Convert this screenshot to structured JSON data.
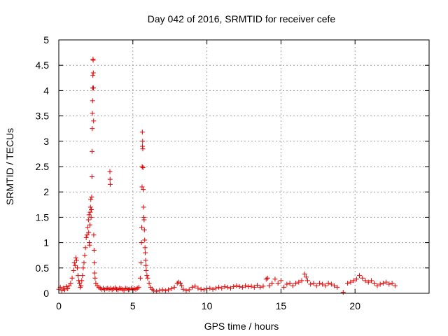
{
  "chart_data": {
    "type": "scatter",
    "title": "Day 042 of 2016, SRMTID for receiver cefe",
    "xlabel": "GPS time / hours",
    "ylabel": "SRMTID / TECUs",
    "xlim": [
      0,
      25
    ],
    "ylim": [
      0,
      5
    ],
    "x_ticks": [
      0,
      5,
      10,
      15,
      20
    ],
    "y_ticks": [
      0,
      0.5,
      1,
      1.5,
      2,
      2.5,
      3,
      3.5,
      4,
      4.5,
      5
    ],
    "x_tick_labels": [
      "0",
      "5",
      "10",
      "15",
      "20"
    ],
    "y_tick_labels": [
      "0",
      "0.5",
      "1",
      "1.5",
      "2",
      "2.5",
      "3",
      "3.5",
      "4",
      "4.5",
      "5"
    ],
    "grid": true,
    "marker": "+",
    "color": "#e00000",
    "series": [
      {
        "name": "SRMTID",
        "points": [
          [
            0.0,
            0.08
          ],
          [
            0.1,
            0.12
          ],
          [
            0.2,
            0.05
          ],
          [
            0.3,
            0.1
          ],
          [
            0.4,
            0.07
          ],
          [
            0.5,
            0.13
          ],
          [
            0.6,
            0.09
          ],
          [
            0.7,
            0.15
          ],
          [
            0.8,
            0.2
          ],
          [
            0.9,
            0.3
          ],
          [
            1.0,
            0.45
          ],
          [
            1.05,
            0.6
          ],
          [
            1.1,
            0.55
          ],
          [
            1.15,
            0.7
          ],
          [
            1.2,
            0.65
          ],
          [
            1.25,
            0.5
          ],
          [
            1.3,
            0.35
          ],
          [
            1.35,
            0.25
          ],
          [
            1.4,
            0.2
          ],
          [
            1.45,
            0.12
          ],
          [
            1.5,
            0.15
          ],
          [
            1.55,
            0.25
          ],
          [
            1.6,
            0.35
          ],
          [
            1.65,
            0.5
          ],
          [
            1.7,
            0.6
          ],
          [
            1.75,
            0.75
          ],
          [
            1.8,
            0.9
          ],
          [
            1.85,
            1.1
          ],
          [
            1.9,
            1.15
          ],
          [
            1.95,
            1.3
          ],
          [
            2.0,
            1.45
          ],
          [
            2.02,
            1.2
          ],
          [
            2.04,
            1.55
          ],
          [
            2.06,
            1.0
          ],
          [
            2.08,
            0.95
          ],
          [
            2.1,
            1.35
          ],
          [
            2.12,
            1.6
          ],
          [
            2.14,
            1.7
          ],
          [
            2.16,
            1.85
          ],
          [
            2.18,
            1.5
          ],
          [
            2.2,
            1.65
          ],
          [
            2.22,
            1.9
          ],
          [
            2.24,
            2.3
          ],
          [
            2.25,
            2.8
          ],
          [
            2.26,
            3.25
          ],
          [
            2.27,
            3.55
          ],
          [
            2.28,
            3.8
          ],
          [
            2.29,
            4.05
          ],
          [
            2.3,
            4.3
          ],
          [
            2.31,
            4.62
          ],
          [
            2.32,
            4.6
          ],
          [
            2.33,
            4.35
          ],
          [
            2.34,
            4.05
          ],
          [
            2.35,
            3.4
          ],
          [
            2.36,
            1.15
          ],
          [
            2.38,
            0.85
          ],
          [
            2.4,
            0.6
          ],
          [
            2.42,
            0.4
          ],
          [
            2.45,
            0.3
          ],
          [
            2.5,
            0.2
          ],
          [
            2.6,
            0.15
          ],
          [
            2.7,
            0.12
          ],
          [
            2.8,
            0.1
          ],
          [
            2.9,
            0.08
          ],
          [
            3.0,
            0.1
          ],
          [
            3.1,
            0.07
          ],
          [
            3.2,
            0.09
          ],
          [
            3.3,
            0.1
          ],
          [
            3.4,
            0.08
          ],
          [
            3.45,
            2.4
          ],
          [
            3.46,
            2.25
          ],
          [
            3.47,
            2.15
          ],
          [
            3.5,
            0.1
          ],
          [
            3.6,
            0.07
          ],
          [
            3.7,
            0.09
          ],
          [
            3.8,
            0.11
          ],
          [
            3.9,
            0.08
          ],
          [
            4.0,
            0.07
          ],
          [
            4.1,
            0.1
          ],
          [
            4.2,
            0.09
          ],
          [
            4.3,
            0.08
          ],
          [
            4.4,
            0.06
          ],
          [
            4.5,
            0.1
          ],
          [
            4.6,
            0.09
          ],
          [
            4.7,
            0.07
          ],
          [
            4.8,
            0.08
          ],
          [
            4.9,
            0.1
          ],
          [
            5.0,
            0.07
          ],
          [
            5.1,
            0.09
          ],
          [
            5.2,
            0.08
          ],
          [
            5.3,
            0.1
          ],
          [
            5.4,
            0.12
          ],
          [
            5.5,
            0.3
          ],
          [
            5.55,
            0.6
          ],
          [
            5.58,
            1.0
          ],
          [
            5.6,
            1.3
          ],
          [
            5.62,
            2.1
          ],
          [
            5.63,
            2.5
          ],
          [
            5.64,
            3.18
          ],
          [
            5.65,
            2.9
          ],
          [
            5.66,
            3.0
          ],
          [
            5.67,
            2.85
          ],
          [
            5.68,
            2.48
          ],
          [
            5.7,
            2.05
          ],
          [
            5.72,
            1.7
          ],
          [
            5.74,
            1.5
          ],
          [
            5.76,
            1.45
          ],
          [
            5.78,
            1.25
          ],
          [
            5.8,
            1.05
          ],
          [
            5.82,
            0.9
          ],
          [
            5.84,
            0.8
          ],
          [
            5.86,
            0.65
          ],
          [
            5.88,
            0.55
          ],
          [
            5.9,
            0.45
          ],
          [
            5.95,
            0.35
          ],
          [
            6.0,
            0.3
          ],
          [
            6.1,
            0.2
          ],
          [
            6.2,
            0.12
          ],
          [
            6.3,
            0.08
          ],
          [
            6.4,
            0.05
          ],
          [
            6.6,
            0.04
          ],
          [
            6.8,
            0.06
          ],
          [
            7.0,
            0.07
          ],
          [
            7.2,
            0.05
          ],
          [
            7.4,
            0.07
          ],
          [
            7.6,
            0.09
          ],
          [
            7.8,
            0.12
          ],
          [
            8.0,
            0.2
          ],
          [
            8.1,
            0.22
          ],
          [
            8.2,
            0.2
          ],
          [
            8.3,
            0.15
          ],
          [
            8.4,
            0.08
          ],
          [
            8.6,
            0.05
          ],
          [
            8.8,
            0.07
          ],
          [
            9.0,
            0.12
          ],
          [
            9.2,
            0.14
          ],
          [
            9.4,
            0.1
          ],
          [
            9.6,
            0.08
          ],
          [
            9.8,
            0.07
          ],
          [
            10.0,
            0.09
          ],
          [
            10.2,
            0.1
          ],
          [
            10.4,
            0.08
          ],
          [
            10.6,
            0.1
          ],
          [
            10.8,
            0.12
          ],
          [
            11.0,
            0.1
          ],
          [
            11.2,
            0.13
          ],
          [
            11.4,
            0.12
          ],
          [
            11.6,
            0.1
          ],
          [
            11.8,
            0.13
          ],
          [
            12.0,
            0.15
          ],
          [
            12.2,
            0.13
          ],
          [
            12.4,
            0.12
          ],
          [
            12.6,
            0.15
          ],
          [
            12.8,
            0.13
          ],
          [
            13.0,
            0.14
          ],
          [
            13.2,
            0.12
          ],
          [
            13.4,
            0.16
          ],
          [
            13.6,
            0.12
          ],
          [
            13.8,
            0.14
          ],
          [
            14.0,
            0.28
          ],
          [
            14.1,
            0.3
          ],
          [
            14.2,
            0.15
          ],
          [
            14.4,
            0.2
          ],
          [
            14.6,
            0.28
          ],
          [
            14.8,
            0.2
          ],
          [
            15.0,
            0.25
          ],
          [
            15.2,
            0.12
          ],
          [
            15.4,
            0.18
          ],
          [
            15.6,
            0.2
          ],
          [
            15.8,
            0.15
          ],
          [
            16.0,
            0.2
          ],
          [
            16.2,
            0.22
          ],
          [
            16.4,
            0.25
          ],
          [
            16.6,
            0.38
          ],
          [
            16.7,
            0.32
          ],
          [
            16.8,
            0.25
          ],
          [
            17.0,
            0.18
          ],
          [
            17.2,
            0.2
          ],
          [
            17.4,
            0.15
          ],
          [
            17.6,
            0.2
          ],
          [
            17.8,
            0.18
          ],
          [
            18.0,
            0.15
          ],
          [
            18.2,
            0.2
          ],
          [
            18.4,
            0.18
          ],
          [
            18.6,
            0.15
          ],
          [
            18.8,
            0.12
          ],
          [
            19.2,
            0.02
          ],
          [
            19.5,
            0.2
          ],
          [
            19.7,
            0.22
          ],
          [
            19.9,
            0.25
          ],
          [
            20.1,
            0.28
          ],
          [
            20.3,
            0.35
          ],
          [
            20.5,
            0.3
          ],
          [
            20.7,
            0.25
          ],
          [
            20.9,
            0.22
          ],
          [
            21.1,
            0.25
          ],
          [
            21.3,
            0.2
          ],
          [
            21.5,
            0.15
          ],
          [
            21.7,
            0.18
          ],
          [
            21.9,
            0.2
          ],
          [
            22.1,
            0.22
          ],
          [
            22.3,
            0.18
          ],
          [
            22.5,
            0.2
          ],
          [
            22.7,
            0.15
          ]
        ]
      }
    ]
  }
}
